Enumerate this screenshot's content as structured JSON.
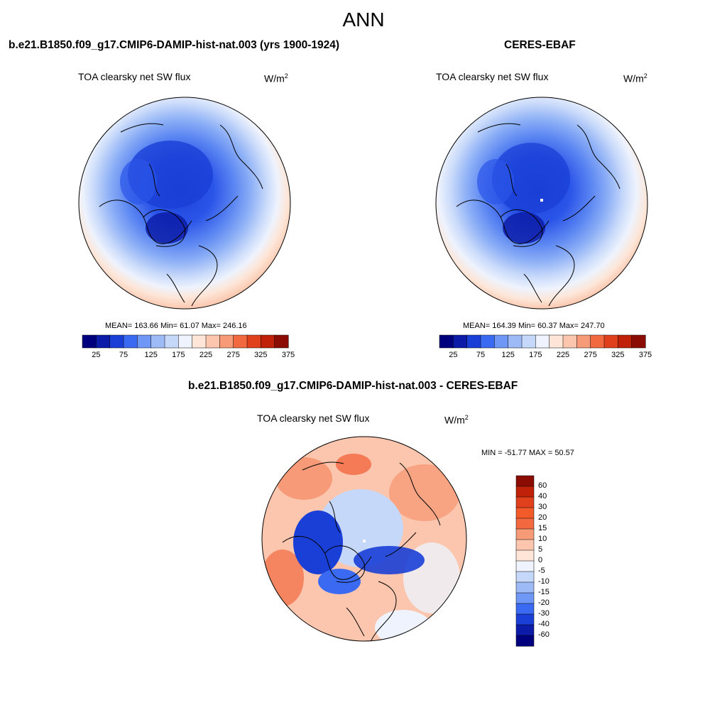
{
  "title": "ANN",
  "panels": [
    {
      "case": "b.e21.B1850.f09_g17.CMIP6-DAMIP-hist-nat.003 (yrs 1900-1924)",
      "variable": "TOA clearsky net SW flux",
      "units": "W/m",
      "units_sup": "2",
      "stats": "MEAN= 163.66  Min=  61.07  Max= 246.16"
    },
    {
      "case": "CERES-EBAF",
      "variable": "TOA clearsky net SW flux",
      "units": "W/m",
      "units_sup": "2",
      "stats": "MEAN= 164.39  Min=  60.37  Max= 247.70"
    },
    {
      "case": "b.e21.B1850.f09_g17.CMIP6-DAMIP-hist-nat.003 - CERES-EBAF",
      "variable": "TOA clearsky net SW flux",
      "units": "W/m",
      "units_sup": "2",
      "stats": "MIN = -51.77 MAX =  50.57"
    }
  ],
  "colorbar_abs": {
    "labels": [
      "25",
      "75",
      "125",
      "175",
      "225",
      "275",
      "325",
      "375"
    ],
    "colors": [
      "#00007f",
      "#0c1ca8",
      "#1a3fd6",
      "#3a6af2",
      "#6f97f5",
      "#9dbaf7",
      "#c6d8fa",
      "#eef3fd",
      "#fde6d8",
      "#fbc6ad",
      "#f79a77",
      "#f2683f",
      "#e1401c",
      "#bf2208",
      "#8b0c02"
    ]
  },
  "colorbar_diff": {
    "labels": [
      "60",
      "40",
      "30",
      "20",
      "15",
      "10",
      "5",
      "0",
      "-5",
      "-10",
      "-15",
      "-20",
      "-30",
      "-40",
      "-60"
    ],
    "colors": [
      "#8b0c02",
      "#bf2208",
      "#e1401c",
      "#f25a2a",
      "#f2683f",
      "#f79a77",
      "#fbc6ad",
      "#fde6d8",
      "#eef3fd",
      "#c6d8fa",
      "#9dbaf7",
      "#6f97f5",
      "#3a6af2",
      "#1a3fd6",
      "#0c1ca8",
      "#00007f"
    ]
  }
}
